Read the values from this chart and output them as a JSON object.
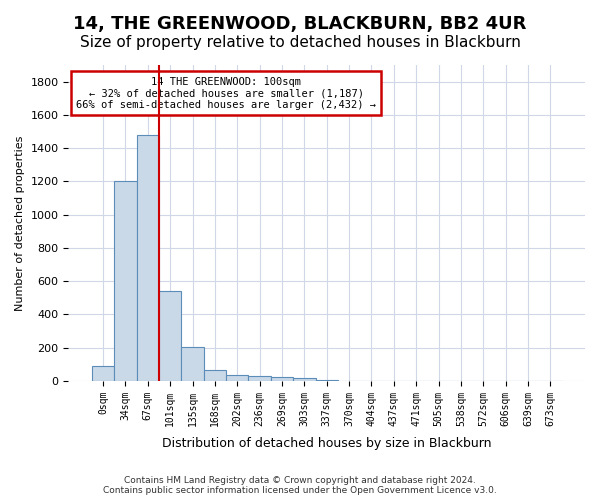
{
  "title": "14, THE GREENWOOD, BLACKBURN, BB2 4UR",
  "subtitle": "Size of property relative to detached houses in Blackburn",
  "xlabel": "Distribution of detached houses by size in Blackburn",
  "ylabel": "Number of detached properties",
  "footer_line1": "Contains HM Land Registry data © Crown copyright and database right 2024.",
  "footer_line2": "Contains public sector information licensed under the Open Government Licence v3.0.",
  "bar_color": "#c9d9e8",
  "bar_edge_color": "#5b8db8",
  "annotation_line1": "14 THE GREENWOOD: 100sqm",
  "annotation_line2": "← 32% of detached houses are smaller (1,187)",
  "annotation_line3": "66% of semi-detached houses are larger (2,432) →",
  "vline_x": 2.5,
  "vline_color": "#cc0000",
  "ylim": [
    0,
    1900
  ],
  "yticks": [
    0,
    200,
    400,
    600,
    800,
    1000,
    1200,
    1400,
    1600,
    1800
  ],
  "bin_labels": [
    "0sqm",
    "34sqm",
    "67sqm",
    "101sqm",
    "135sqm",
    "168sqm",
    "202sqm",
    "236sqm",
    "269sqm",
    "303sqm",
    "337sqm",
    "370sqm",
    "404sqm",
    "437sqm",
    "471sqm",
    "505sqm",
    "538sqm",
    "572sqm",
    "606sqm",
    "639sqm",
    "673sqm"
  ],
  "bar_values": [
    90,
    1200,
    1480,
    540,
    205,
    65,
    35,
    30,
    25,
    15,
    5,
    0,
    0,
    0,
    0,
    0,
    0,
    0,
    0,
    0,
    0
  ],
  "background_color": "#ffffff",
  "grid_color": "#d0d8e8",
  "title_fontsize": 13,
  "subtitle_fontsize": 11,
  "annotation_box_color": "#ffffff",
  "annotation_box_edge": "#cc0000"
}
